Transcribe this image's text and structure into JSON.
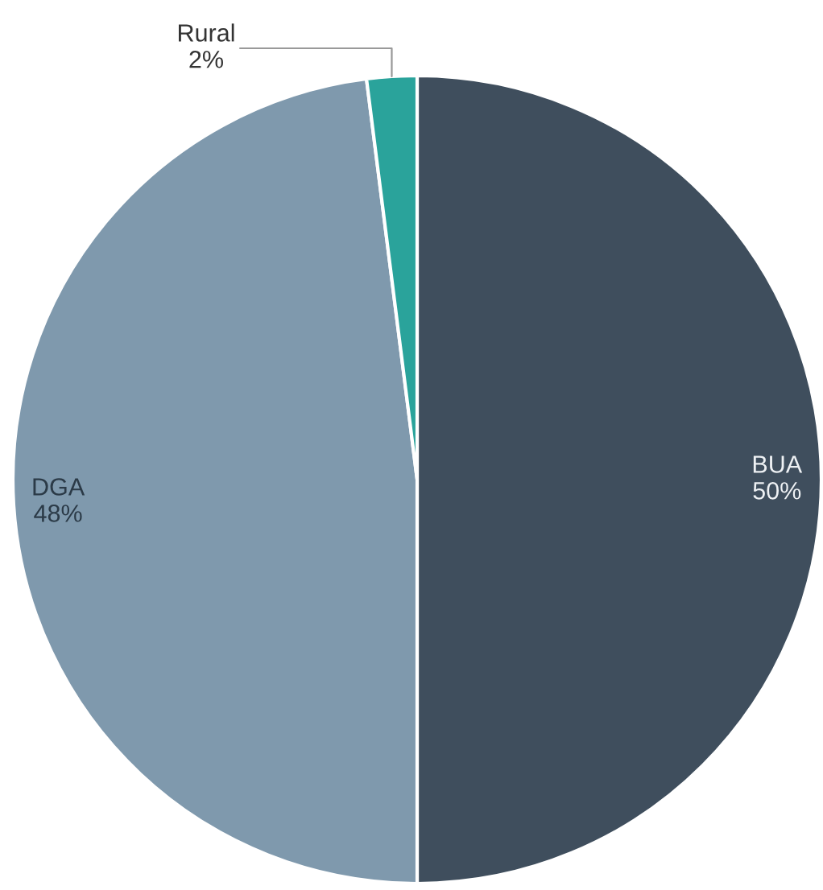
{
  "chart_data": {
    "type": "pie",
    "categories": [
      "BUA",
      "DGA",
      "Rural"
    ],
    "values": [
      50,
      48,
      2
    ],
    "colors": [
      "#3f4e5d",
      "#7f99ad",
      "#2aa39b"
    ],
    "value_labels": [
      "50%",
      "48%",
      "2%"
    ],
    "legend": false
  }
}
